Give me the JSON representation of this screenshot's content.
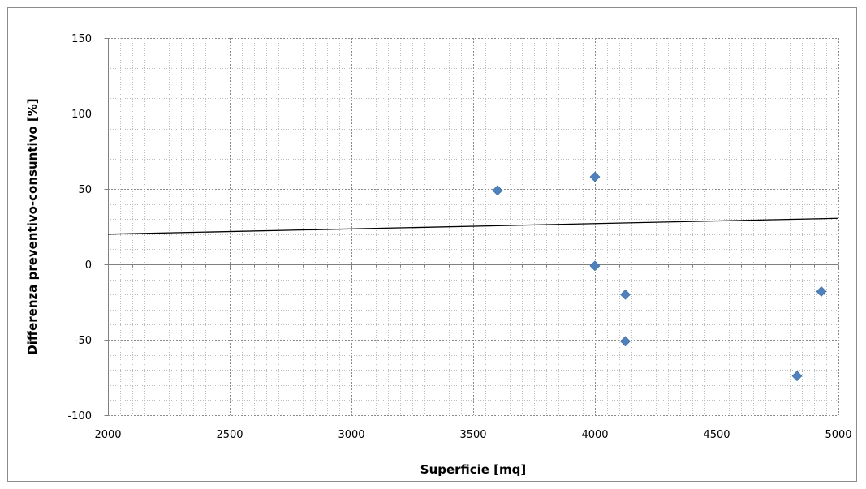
{
  "chart_data": {
    "type": "scatter",
    "title": "",
    "xlabel": "Superficie  [mq]",
    "ylabel": "Differenza preventivo-consuntivo  [%]",
    "xlim": [
      2000,
      5000
    ],
    "ylim": [
      -100,
      150
    ],
    "x_ticks": [
      2000,
      2500,
      3000,
      3500,
      4000,
      4500,
      5000
    ],
    "y_ticks": [
      -100,
      -50,
      0,
      50,
      100,
      150
    ],
    "x_tick_labels": [
      "2000",
      "2500",
      "3000",
      "3500",
      "4000",
      "4500",
      "5000"
    ],
    "y_tick_labels": [
      "-100",
      "-50",
      "0",
      "50",
      "100",
      "150"
    ],
    "grid": true,
    "legend": "none",
    "series": [
      {
        "marker": "diamond",
        "color": "#4F81BD",
        "points": [
          {
            "x": 3600,
            "y": 49
          },
          {
            "x": 4000,
            "y": 58
          },
          {
            "x": 4000,
            "y": -1
          },
          {
            "x": 4125,
            "y": -20
          },
          {
            "x": 4125,
            "y": -51
          },
          {
            "x": 4830,
            "y": -74
          },
          {
            "x": 4930,
            "y": -18
          }
        ]
      }
    ],
    "trendline": {
      "type": "linear",
      "color": "#000000",
      "points": [
        {
          "x": 2000,
          "y": 20
        },
        {
          "x": 5000,
          "y": 30.5
        }
      ]
    }
  }
}
